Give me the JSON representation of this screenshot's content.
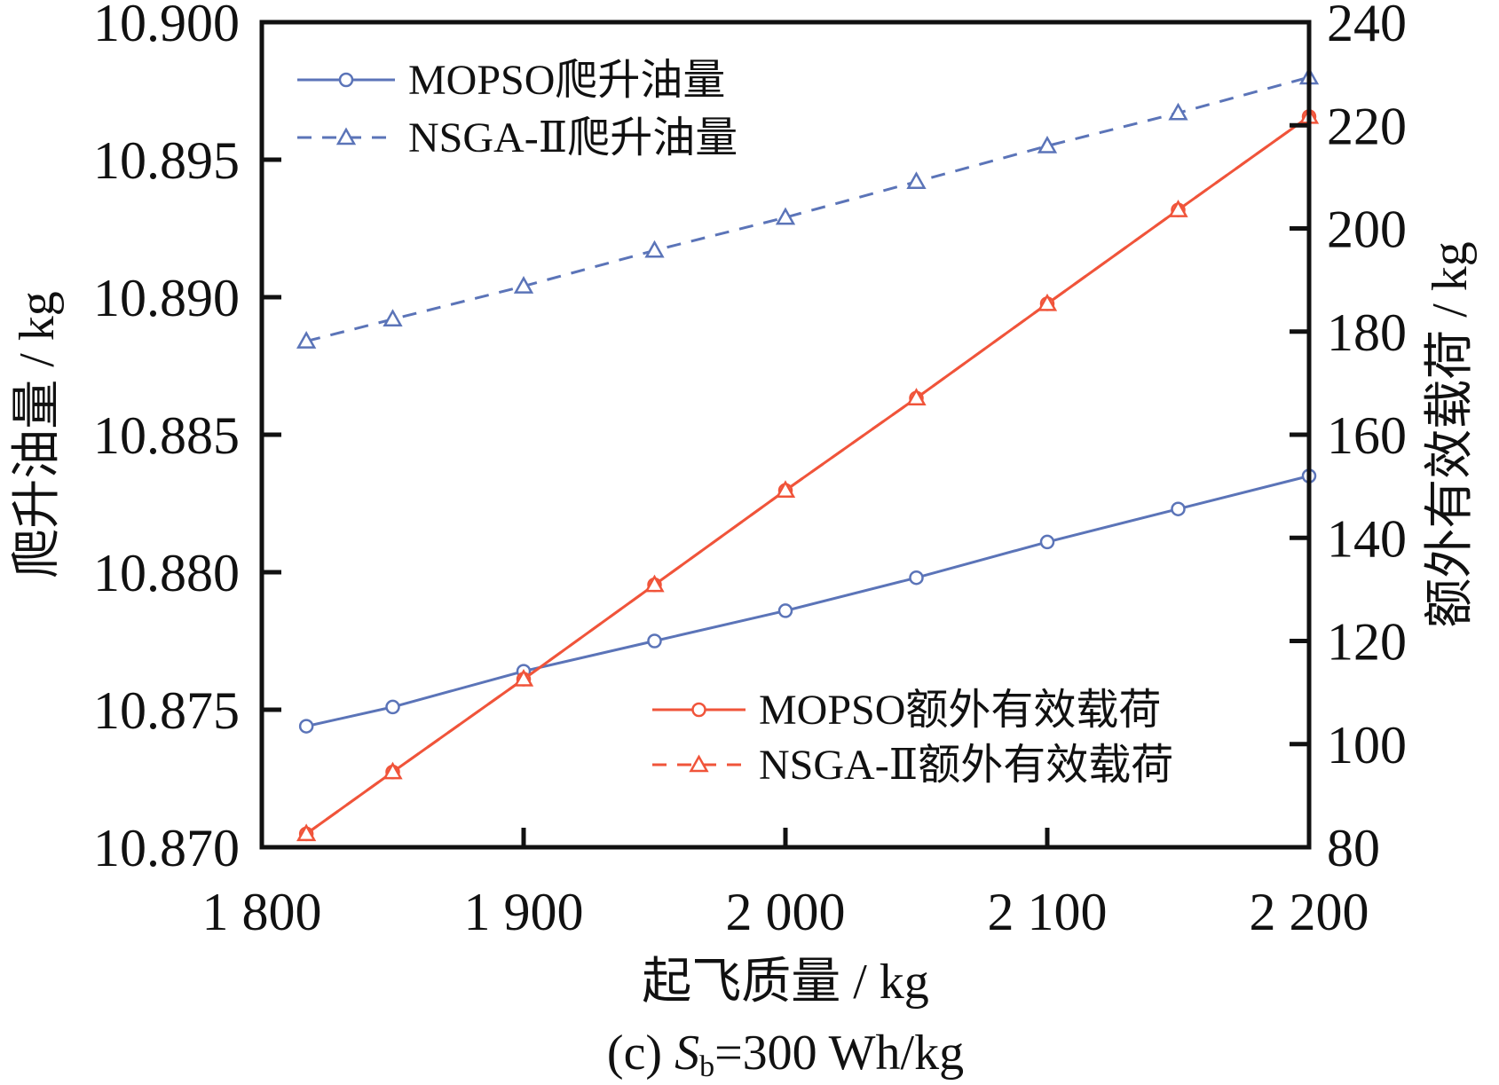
{
  "chart_data": {
    "type": "line",
    "title": "",
    "caption": {
      "prefix": "(c) ",
      "var": "S",
      "sub": "b",
      "suffix": "=300 Wh/kg"
    },
    "xlabel": "起飞质量 / kg",
    "ylabel_left": "爬升油量 / kg",
    "ylabel_right": "额外有效载荷 / kg",
    "xlim": [
      1800,
      2200
    ],
    "ylim_left": [
      10.87,
      10.9
    ],
    "ylim_right": [
      80,
      240
    ],
    "xticks": [
      1800,
      1900,
      2000,
      2100,
      2200
    ],
    "xtick_labels": [
      "1 800",
      "1 900",
      "2 000",
      "2 100",
      "2 200"
    ],
    "yticks_left": [
      "10.870",
      "10.875",
      "10.880",
      "10.885",
      "10.890",
      "10.895",
      "10.900"
    ],
    "yticks_right": [
      "80",
      "100",
      "120",
      "140",
      "160",
      "180",
      "200",
      "220",
      "240"
    ],
    "x": [
      1817,
      1850,
      1900,
      1950,
      2000,
      2050,
      2100,
      2150,
      2200
    ],
    "grid": false,
    "series": [
      {
        "name": "MOPSO爬升油量",
        "axis": "left",
        "color": "#5b74b8",
        "dash": false,
        "marker": "circle",
        "values": [
          10.8744,
          10.8751,
          10.8764,
          10.8775,
          10.8786,
          10.8798,
          10.8811,
          10.8823,
          10.8835
        ]
      },
      {
        "name": "NSGA-Ⅱ爬升油量",
        "axis": "left",
        "color": "#5b74b8",
        "dash": true,
        "marker": "triangle",
        "values": [
          10.8884,
          10.8892,
          10.8904,
          10.8917,
          10.8929,
          10.8942,
          10.8955,
          10.8967,
          10.898
        ]
      },
      {
        "name": "MOPSO额外有效载荷",
        "axis": "right",
        "color": "#f0543a",
        "dash": false,
        "marker": "circle",
        "values": [
          82.6,
          94.6,
          112.6,
          130.9,
          149.2,
          167.1,
          185.4,
          203.6,
          221.7
        ]
      },
      {
        "name": "NSGA-Ⅱ额外有效载荷",
        "axis": "right",
        "color": "#f0543a",
        "dash": true,
        "marker": "triangle",
        "values": [
          82.6,
          94.6,
          112.6,
          130.9,
          149.2,
          167.1,
          185.4,
          203.6,
          221.7
        ]
      }
    ],
    "legend": [
      {
        "placement": "top-left",
        "items": [
          0,
          1
        ]
      },
      {
        "placement": "bottom-right",
        "items": [
          2,
          3
        ]
      }
    ]
  }
}
